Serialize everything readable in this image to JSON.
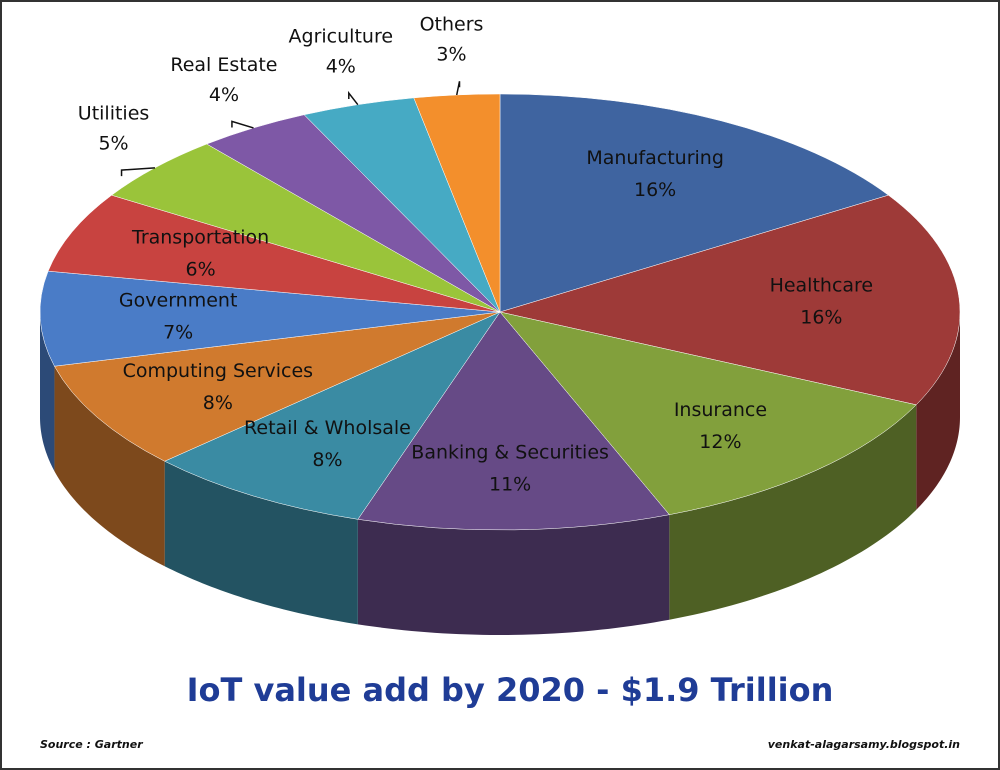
{
  "chart_data": {
    "type": "pie3d",
    "title": "IoT value add by 2020 - $1.9 Trillion",
    "source": "Source : Gartner",
    "credit": "venkat-alagarsamy.blogspot.in",
    "categories": [
      "Manufacturing",
      "Healthcare",
      "Insurance",
      "Banking & Securities",
      "Retail & Wholsale",
      "Computing Services",
      "Government",
      "Transportation",
      "Utilities",
      "Real Estate",
      "Agriculture",
      "Others"
    ],
    "values": [
      16,
      16,
      12,
      11,
      8,
      8,
      7,
      6,
      5,
      4,
      4,
      3
    ],
    "value_labels": [
      "16%",
      "16%",
      "12%",
      "11%",
      "8%",
      "8%",
      "7%",
      "6%",
      "5%",
      "4%",
      "4%",
      "3%"
    ],
    "colors": [
      "#3f64a0",
      "#9e3a38",
      "#82a03c",
      "#664a86",
      "#3a8ba3",
      "#d07a2e",
      "#4a7cc7",
      "#c84340",
      "#9ac43a",
      "#7e58a6",
      "#46aac4",
      "#f38f2c"
    ]
  }
}
